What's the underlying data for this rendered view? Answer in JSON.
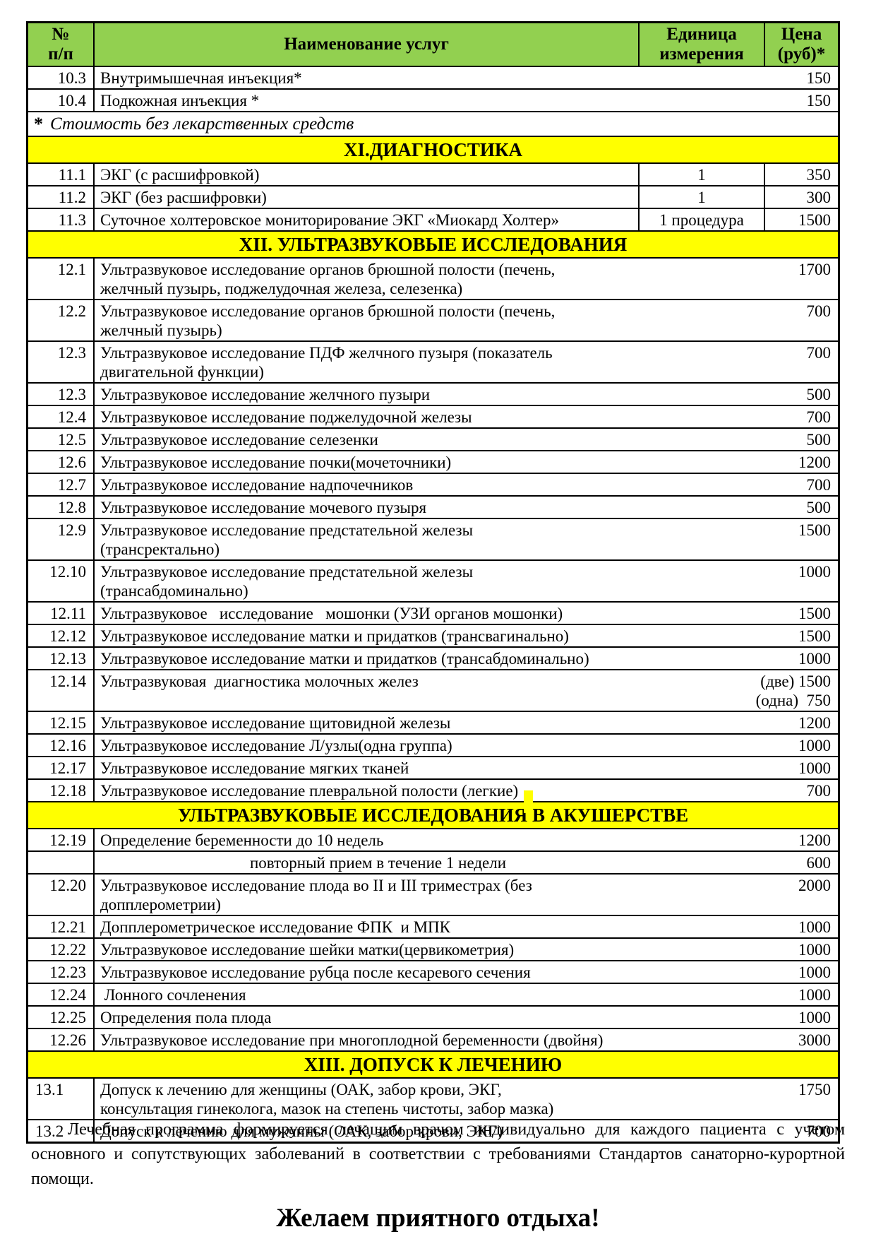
{
  "colors": {
    "header_green": "#92d050",
    "section_yellow": "#ffff00",
    "border": "#000000"
  },
  "table": {
    "columns": {
      "num": "№\nп/п",
      "name": "Наименование услуг",
      "unit": "Единица\nизмерения",
      "price": "Цена\n(руб)*"
    },
    "rows": [
      {
        "type": "service",
        "layout": "m-narrow",
        "num": "10.3",
        "name": "Внутримышечная инъекция*",
        "price": "150"
      },
      {
        "type": "service",
        "layout": "m-narrow",
        "num": "10.4",
        "name": "Подкожная инъекция *",
        "price": "150"
      },
      {
        "type": "note",
        "star": "*",
        "text": "Стоимость без лекарственных средств"
      },
      {
        "type": "section",
        "title": "XI.ДИАГНОСТИКА"
      },
      {
        "type": "service",
        "layout": "u4",
        "num": "11.1",
        "name": "ЭКГ (с расшифровкой)",
        "unit": "1",
        "price": "350"
      },
      {
        "type": "service",
        "layout": "u4",
        "num": "11.2",
        "name": "ЭКГ (без расшифровки)",
        "unit": "1",
        "price": "300"
      },
      {
        "type": "service",
        "layout": "u4",
        "num": "11.3",
        "name": "Суточное холтеровское мониторирование ЭКГ «Миокард Холтер»",
        "unit": "1 процедура",
        "price": "1500"
      },
      {
        "type": "section",
        "title": "XII. УЛЬТРАЗВУКОВЫЕ ИССЛЕДОВАНИЯ"
      },
      {
        "type": "service",
        "layout": "m-wide",
        "num": "12.1",
        "name": "Ультразвуковое исследование органов брюшной полости (печень,\nжелчный пузырь, поджелудочная железа, селезенка)",
        "price": "1700"
      },
      {
        "type": "service",
        "layout": "m-wide",
        "num": "12.2",
        "name": "Ультразвуковое исследование органов брюшной полости (печень,\nжелчный пузырь)",
        "price": "700"
      },
      {
        "type": "service",
        "layout": "m-wide",
        "num": "12.3",
        "name": "Ультразвуковое исследование ПДФ желчного пузыря (показатель\nдвигательной функции)",
        "price": "700"
      },
      {
        "type": "service",
        "layout": "m-wide",
        "num": "12.3",
        "name": "Ультразвуковое исследование желчного пузыри",
        "price": "500"
      },
      {
        "type": "service",
        "layout": "m-wide",
        "num": "12.4",
        "name": "Ультразвуковое исследование поджелудочной железы",
        "price": "700"
      },
      {
        "type": "service",
        "layout": "m-wide",
        "num": "12.5",
        "name": "Ультразвуковое исследование селезенки",
        "price": "500"
      },
      {
        "type": "service",
        "layout": "m-wide",
        "num": "12.6",
        "name": "Ультразвуковое исследование почки(мочеточники)",
        "price": "1200"
      },
      {
        "type": "service",
        "layout": "m-wide",
        "num": "12.7",
        "name": "Ультразвуковое исследование надпочечников",
        "price": "700"
      },
      {
        "type": "service",
        "layout": "m-wide",
        "num": "12.8",
        "name": "Ультразвуковое исследование мочевого пузыря",
        "price": "500"
      },
      {
        "type": "service",
        "layout": "m-wide",
        "num": "12.9",
        "name": "Ультразвуковое исследование предстательной железы\n(трансректально)",
        "price": "1500"
      },
      {
        "type": "service",
        "layout": "m-wide",
        "num": "12.10",
        "name": "Ультразвуковое исследование предстательной железы\n(трансабдоминально)",
        "price": "1000"
      },
      {
        "type": "service",
        "layout": "m-wide",
        "num": "12.11",
        "name": "Ультразвуковое   исследование   мошонки (УЗИ органов мошонки)",
        "price": "1500"
      },
      {
        "type": "service",
        "layout": "m-wide",
        "num": "12.12",
        "name": "Ультразвуковое исследование матки и придатков (трансвагинально)",
        "price": "1500"
      },
      {
        "type": "service",
        "layout": "m-wide",
        "num": "12.13",
        "name": "Ультразвуковое исследование матки и придатков (трансабдоминально)",
        "price": "1000"
      },
      {
        "type": "service",
        "layout": "m-wide",
        "num": "12.14",
        "name": "Ультразвуковая  диагностика молочных желез",
        "price": "(две) 1500\n(одна)  750"
      },
      {
        "type": "service",
        "layout": "m-wide",
        "num": "12.15",
        "name": "Ультразвуковое исследование щитовидной железы",
        "price": "1200"
      },
      {
        "type": "service",
        "layout": "m-wide",
        "num": "12.16",
        "name": "Ультразвуковое исследование Л/узлы(одна группа)",
        "price": "1000"
      },
      {
        "type": "service",
        "layout": "m-wide",
        "num": "12.17",
        "name": "Ультразвуковое исследование мягких тканей",
        "price": "1000"
      },
      {
        "type": "service",
        "layout": "m-wide",
        "num": "12.18",
        "name": "Ультразвуковое исследование плевральной полости (легкие)",
        "price": "700"
      },
      {
        "type": "section",
        "title": "УЛЬТРАЗВУКОВЫЕ ИССЛЕДОВАНИЯ В АКУШЕРСТВЕ",
        "artifact": true
      },
      {
        "type": "service",
        "layout": "m-wide",
        "num": "12.19",
        "name": "Определение беременности до 10 недель",
        "price": "1200"
      },
      {
        "type": "service",
        "layout": "m-wide",
        "num": "",
        "name": "повторный прием в течение 1 недели",
        "name_align": "center",
        "price": "600"
      },
      {
        "type": "service",
        "layout": "m-wide",
        "num": "12.20",
        "name": "Ультразвуковое исследование плода во II и III триместрах (без\nдопплерометрии)",
        "price": "2000"
      },
      {
        "type": "service",
        "layout": "m-wide",
        "num": "12.21",
        "name": "Допплерометрическое исследование ФПК  и МПК",
        "price": "1000"
      },
      {
        "type": "service",
        "layout": "m-wide",
        "num": "12.22",
        "name": "Ультразвуковое исследование шейки матки(цервикометрия)",
        "price": "1000"
      },
      {
        "type": "service",
        "layout": "m-wide",
        "num": "12.23",
        "name": "Ультразвуковое исследование рубца после кесаревого сечения",
        "price": "1000"
      },
      {
        "type": "service",
        "layout": "m-wide",
        "num": "12.24",
        "name": " Лонного сочленения",
        "price": "1000"
      },
      {
        "type": "service",
        "layout": "m-wide",
        "num": "12.25",
        "name": "Определения пола плода",
        "price": "1000"
      },
      {
        "type": "service",
        "layout": "m-wide",
        "num": "12.26",
        "name": "Ультразвуковое исследование при многоплодной беременности (двойня)",
        "price": "3000"
      },
      {
        "type": "section",
        "title": "XIII. ДОПУСК К ЛЕЧЕНИЮ"
      },
      {
        "type": "service",
        "layout": "m-wide",
        "num": "13.1",
        "num_align": "left",
        "name": "Допуск к лечению для женщины (ОАК, забор крови, ЭКГ,\nконсультация гинеколога, мазок на степень чистоты, забор мазка)",
        "price": "1750"
      },
      {
        "type": "service",
        "layout": "m-wide",
        "num": "13.2",
        "num_align": "left",
        "name": "Допуск к лечению для мужчины (ОАК, забор крови, ЭКГ)",
        "price": "700"
      }
    ]
  },
  "footer": {
    "paragraph": "Лечебная программа формируется лечащим врачом индивидуально для каждого пациента с учетом основного и сопутствующих заболеваний в соответствии с требованиями Стандартов санаторно-курортной помощи.",
    "wish": "Желаем приятного отдыха!"
  }
}
